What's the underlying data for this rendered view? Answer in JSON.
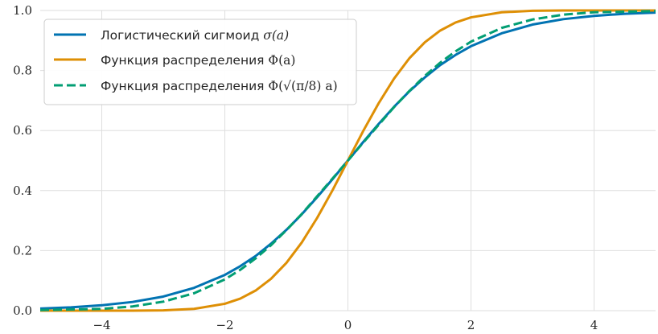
{
  "chart_data": {
    "type": "line",
    "xlim": [
      -5,
      5
    ],
    "ylim": [
      0,
      1
    ],
    "grid": true,
    "legend_position": "top-left",
    "xticks": [
      -4,
      -2,
      0,
      2,
      4
    ],
    "xtick_labels": [
      "−4",
      "−2",
      "0",
      "2",
      "4"
    ],
    "yticks": [
      0,
      0.2,
      0.4,
      0.6,
      0.8,
      1
    ],
    "ytick_labels": [
      "0.0",
      "0.2",
      "0.4",
      "0.6",
      "0.8",
      "1.0"
    ],
    "x": [
      -5,
      -4.5,
      -4,
      -3.5,
      -3,
      -2.5,
      -2,
      -1.75,
      -1.5,
      -1.25,
      -1,
      -0.75,
      -0.5,
      -0.25,
      0,
      0.25,
      0.5,
      0.75,
      1,
      1.25,
      1.5,
      1.75,
      2,
      2.5,
      3,
      3.5,
      4,
      4.5,
      5
    ],
    "series": [
      {
        "label_text": "Логистический сигмоид ",
        "label_math": "σ(a)",
        "color": "#0173b2",
        "dash": "solid",
        "values": [
          0.007,
          0.011,
          0.018,
          0.029,
          0.047,
          0.076,
          0.119,
          0.148,
          0.182,
          0.223,
          0.269,
          0.321,
          0.378,
          0.438,
          0.5,
          0.562,
          0.622,
          0.679,
          0.731,
          0.777,
          0.818,
          0.852,
          0.881,
          0.924,
          0.953,
          0.971,
          0.982,
          0.989,
          0.993
        ]
      },
      {
        "label_text": "Функция распределения ",
        "label_math": "Φ(a)",
        "color": "#de8f05",
        "dash": "solid",
        "values": [
          0.0,
          0.0,
          0.0,
          0.0,
          0.001,
          0.006,
          0.023,
          0.04,
          0.067,
          0.106,
          0.159,
          0.227,
          0.309,
          0.401,
          0.5,
          0.599,
          0.691,
          0.773,
          0.841,
          0.894,
          0.933,
          0.96,
          0.977,
          0.994,
          0.999,
          1.0,
          1.0,
          1.0,
          1.0
        ]
      },
      {
        "label_text": "Функция распределения ",
        "label_math": "Φ(√(π/8) a)",
        "color": "#029e73",
        "dash": "dashed",
        "values": [
          0.002,
          0.004,
          0.006,
          0.014,
          0.03,
          0.058,
          0.104,
          0.136,
          0.174,
          0.218,
          0.268,
          0.322,
          0.381,
          0.44,
          0.5,
          0.56,
          0.619,
          0.678,
          0.732,
          0.782,
          0.826,
          0.864,
          0.896,
          0.942,
          0.97,
          0.986,
          0.994,
          0.996,
          0.998
        ]
      }
    ]
  }
}
